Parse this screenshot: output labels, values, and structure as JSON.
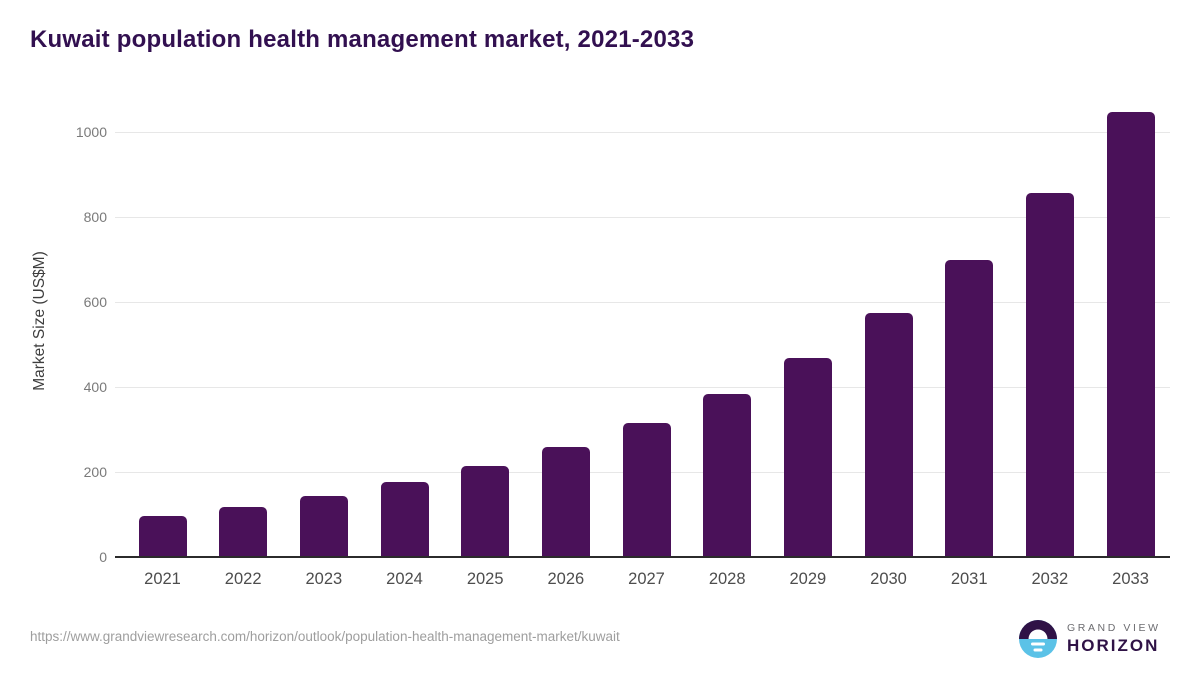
{
  "title": "Kuwait population health management market, 2021-2033",
  "source_url": "https://www.grandviewresearch.com/horizon/outlook/population-health-management-market/kuwait",
  "logo": {
    "line1": "GRAND VIEW",
    "line2": "HORIZON"
  },
  "colors": {
    "bar": "#4A1159",
    "title": "#321050",
    "gridline": "#E7E7E7",
    "axis_line": "#2B2B2B",
    "y_tick_label": "#7A7A7A",
    "x_tick_label": "#4D4D4D",
    "url_text": "#9E9E9E",
    "logo_purple": "#2F1246",
    "logo_blue": "#5BC2E7"
  },
  "chart_data": {
    "type": "bar",
    "title": "Kuwait population health management market, 2021-2033",
    "categories": [
      "2021",
      "2022",
      "2023",
      "2024",
      "2025",
      "2026",
      "2027",
      "2028",
      "2029",
      "2030",
      "2031",
      "2032",
      "2033"
    ],
    "values": [
      97,
      118,
      143,
      176,
      214,
      258,
      315,
      384,
      469,
      575,
      700,
      856,
      1046
    ],
    "xlabel": "",
    "ylabel": "Market Size (US$M)",
    "yticks": [
      0,
      200,
      400,
      600,
      800,
      1000
    ],
    "ylim": [
      0,
      1100
    ],
    "grid": "horizontal",
    "legend": "none",
    "bar_color": "#4A1159"
  }
}
